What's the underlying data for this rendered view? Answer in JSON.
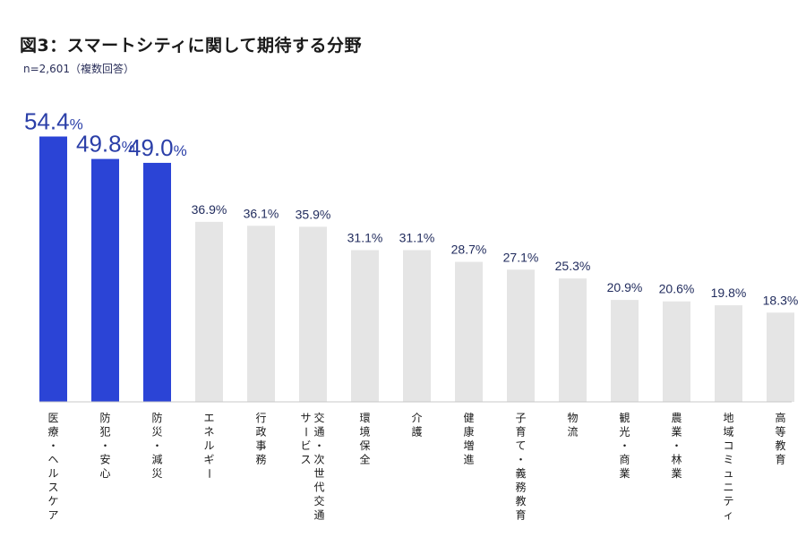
{
  "title": "図3：スマートシティに関して期待する分野",
  "subtitle": "n=2,601（複数回答）",
  "chart_data": {
    "type": "bar",
    "unit": "%",
    "categories": [
      "医療・ヘルスケア",
      "防犯・安心",
      "防災・減災",
      "エネルギー",
      "行政事務",
      "交通・次世代交通サービス",
      "環境保全",
      "介護",
      "健康増進",
      "子育て・義務教育",
      "物流",
      "観光・商業",
      "農業・林業",
      "地域コミュニティ",
      "高等教育"
    ],
    "values": [
      54.4,
      49.8,
      49.0,
      36.9,
      36.1,
      35.9,
      31.1,
      31.1,
      28.7,
      27.1,
      25.3,
      20.9,
      20.6,
      19.8,
      18.3
    ],
    "highlight_count": 3,
    "colors": {
      "highlight": "#2b44d6",
      "normal": "#e5e5e5",
      "highlight_text": "#2b3fa8",
      "normal_text": "#1f2a5c"
    }
  }
}
